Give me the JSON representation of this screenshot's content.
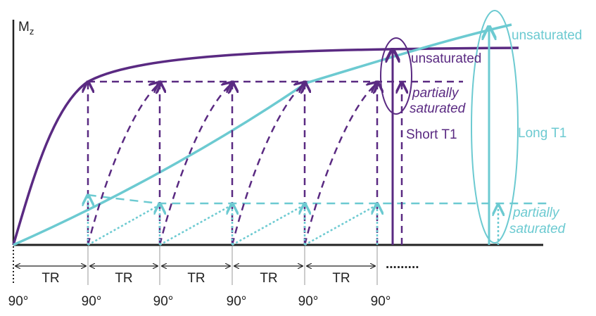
{
  "colors": {
    "purple": "#5a2a82",
    "cyan": "#6ccad1",
    "black": "#222222",
    "grey": "#999999"
  },
  "axis": {
    "y_symbol": "M",
    "y_subscript": "z"
  },
  "intervals": {
    "label": "TR",
    "labels": [
      "TR",
      "TR",
      "TR",
      "TR",
      "TR"
    ],
    "more": "........."
  },
  "pulses": {
    "label": "90°",
    "labels": [
      "90°",
      "90°",
      "90°",
      "90°",
      "90°",
      "90°"
    ]
  },
  "purple_tissue": {
    "name": "Short T1",
    "full_label": "unsaturated",
    "steady_label_1": "partially",
    "steady_label_2": "saturated"
  },
  "cyan_tissue": {
    "name": "Long T1",
    "full_label": "unsaturated",
    "steady_label_1": "partially",
    "steady_label_2": "saturated"
  }
}
